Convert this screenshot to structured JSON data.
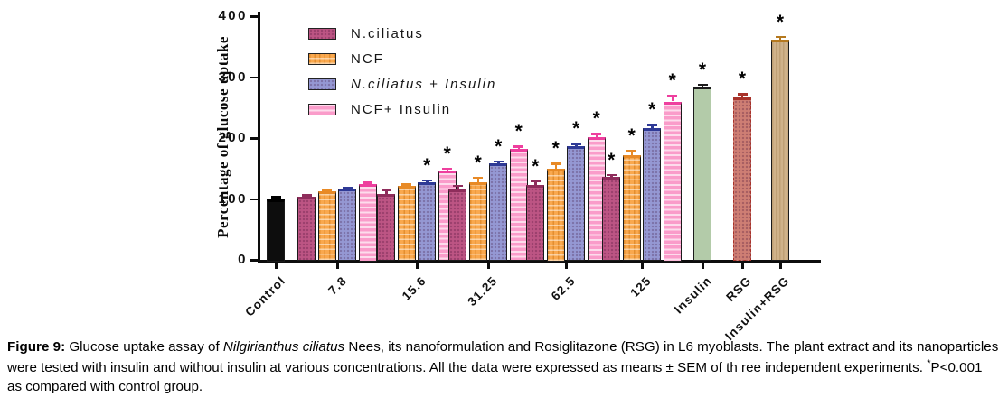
{
  "figure": {
    "caption": {
      "label": "Figure 9:",
      "before_italic": " Glucose uptake assay of ",
      "italic": "Nilgirianthus ciliatus",
      "after_italic": " Nees, its nanoformulation and Rosiglitazone (RSG) in L6 myoblasts. The plant extract and its nanoparticles were tested with insulin and without insulin at various concentrations. All the data were expressed as means ± SEM of th ree independent experiments. ",
      "sig_star": "*",
      "sig_text": "P<0.001 as compared with control group."
    }
  },
  "chart_data": {
    "type": "bar",
    "title": "",
    "xlabel": "",
    "ylabel": "Percentage of glucose uptake",
    "ylim": [
      0,
      400
    ],
    "yticks": [
      0,
      100,
      200,
      300,
      400
    ],
    "grid": false,
    "legend_position": "inside-top-left",
    "legend": [
      {
        "label": "N.ciliatus",
        "series": "N.ciliatus",
        "italic": false
      },
      {
        "label": "NCF",
        "series": "NCF",
        "italic": false
      },
      {
        "label": "N.ciliatus + Insulin",
        "series": "N.ciliatus + Insulin",
        "italic": true
      },
      {
        "label": "NCF+ Insulin",
        "series": "NCF+ Insulin",
        "italic": false
      }
    ],
    "series_styles": {
      "Control": {
        "fill": "#0d0d0d",
        "error": "#000000",
        "pattern": "none"
      },
      "N.ciliatus": {
        "fill": "#bd5584",
        "error": "#8f2d5c",
        "pattern": "dots"
      },
      "NCF": {
        "fill": "#f9a84e",
        "error": "#e88a26",
        "pattern": "grid"
      },
      "N.ciliatus + Insulin": {
        "fill": "#9598d3",
        "error": "#2f3a96",
        "pattern": "dots"
      },
      "NCF+ Insulin": {
        "fill": "#fa9cca",
        "error": "#ee3f9e",
        "pattern": "hlines"
      },
      "Insulin": {
        "fill": "#b3cba9",
        "error": "#1c1c1c",
        "pattern": "none"
      },
      "RSG": {
        "fill": "#ce7e74",
        "error": "#a8322a",
        "pattern": "dots",
        "dashed": true
      },
      "Insulin+RSG": {
        "fill": "#cfb28a",
        "error": "#b5791f",
        "pattern": "vlines"
      }
    },
    "groups": [
      {
        "label": "Control",
        "bars": [
          {
            "series": "Control",
            "value": 100,
            "error": 3,
            "sig": false
          }
        ]
      },
      {
        "label": "7.8",
        "bars": [
          {
            "series": "N.ciliatus",
            "value": 104,
            "error": 2,
            "sig": false
          },
          {
            "series": "NCF",
            "value": 112,
            "error": 2,
            "sig": false
          },
          {
            "series": "N.ciliatus + Insulin",
            "value": 117,
            "error": 2,
            "sig": false
          },
          {
            "series": "NCF+ Insulin",
            "value": 125,
            "error": 2,
            "sig": false
          }
        ]
      },
      {
        "label": "15.6",
        "bars": [
          {
            "series": "N.ciliatus",
            "value": 108,
            "error": 7,
            "sig": false
          },
          {
            "series": "NCF",
            "value": 121,
            "error": 3,
            "sig": false
          },
          {
            "series": "N.ciliatus + Insulin",
            "value": 128,
            "error": 3,
            "sig": true
          },
          {
            "series": "NCF+ Insulin",
            "value": 146,
            "error": 4,
            "sig": true
          }
        ]
      },
      {
        "label": "31.25",
        "bars": [
          {
            "series": "N.ciliatus",
            "value": 116,
            "error": 6,
            "sig": false
          },
          {
            "series": "NCF",
            "value": 128,
            "error": 7,
            "sig": true
          },
          {
            "series": "N.ciliatus + Insulin",
            "value": 158,
            "error": 4,
            "sig": true
          },
          {
            "series": "NCF+ Insulin",
            "value": 182,
            "error": 4,
            "sig": true
          }
        ]
      },
      {
        "label": "62.5",
        "bars": [
          {
            "series": "N.ciliatus",
            "value": 123,
            "error": 6,
            "sig": true
          },
          {
            "series": "NCF",
            "value": 150,
            "error": 8,
            "sig": true
          },
          {
            "series": "N.ciliatus + Insulin",
            "value": 187,
            "error": 4,
            "sig": true
          },
          {
            "series": "NCF+ Insulin",
            "value": 202,
            "error": 5,
            "sig": true
          }
        ]
      },
      {
        "label": "125",
        "bars": [
          {
            "series": "N.ciliatus",
            "value": 137,
            "error": 3,
            "sig": true
          },
          {
            "series": "NCF",
            "value": 172,
            "error": 7,
            "sig": true
          },
          {
            "series": "N.ciliatus + Insulin",
            "value": 216,
            "error": 6,
            "sig": true
          },
          {
            "series": "NCF+ Insulin",
            "value": 260,
            "error": 9,
            "sig": true
          }
        ]
      },
      {
        "label": "Insulin",
        "bars": [
          {
            "series": "Insulin",
            "value": 284,
            "error": 4,
            "sig": true
          }
        ]
      },
      {
        "label": "RSG",
        "bars": [
          {
            "series": "RSG",
            "value": 267,
            "error": 5,
            "sig": true
          }
        ]
      },
      {
        "label": "Insulin+RSG",
        "bars": [
          {
            "series": "Insulin+RSG",
            "value": 361,
            "error": 5,
            "sig": true
          }
        ]
      }
    ]
  }
}
